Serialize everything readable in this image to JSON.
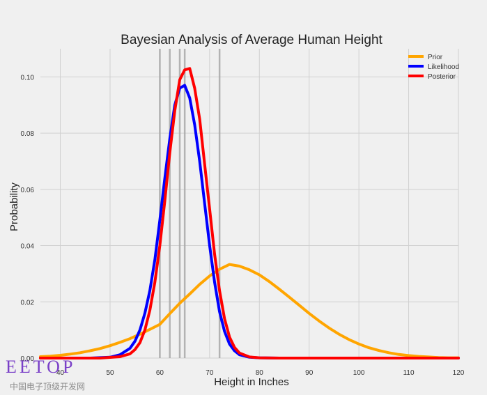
{
  "chart_data": {
    "type": "line",
    "title": "Bayesian Analysis of Average Human Height",
    "xlabel": "Height in Inches",
    "ylabel": "Probability",
    "xlim": [
      36,
      120
    ],
    "ylim": [
      0,
      0.11
    ],
    "xticks": [
      40,
      50,
      60,
      70,
      80,
      90,
      100,
      110,
      120
    ],
    "xtick_labels": [
      "40",
      "50",
      "60",
      "70",
      "80",
      "90",
      "100",
      "110",
      "120"
    ],
    "yticks": [
      0.0,
      0.02,
      0.04,
      0.06,
      0.08,
      0.1
    ],
    "ytick_labels": [
      "0.00",
      "0.02",
      "0.04",
      "0.06",
      "0.08",
      "0.10"
    ],
    "grid": true,
    "legend_position": "top-right",
    "vertical_lines_x": [
      60,
      62,
      64,
      65,
      72
    ],
    "series": [
      {
        "name": "Prior",
        "color": "#ffa500",
        "x": [
          36,
          38,
          40,
          42,
          44,
          46,
          48,
          50,
          52,
          54,
          56,
          58,
          60,
          62,
          64,
          66,
          68,
          70,
          72,
          74,
          76,
          78,
          80,
          82,
          84,
          86,
          88,
          90,
          92,
          94,
          96,
          98,
          100,
          102,
          104,
          106,
          108,
          110,
          112,
          114,
          116,
          118,
          120
        ],
        "y": [
          0.0005,
          0.0007,
          0.001,
          0.0014,
          0.0019,
          0.0026,
          0.0034,
          0.0044,
          0.0056,
          0.0069,
          0.0085,
          0.0102,
          0.012,
          0.0158,
          0.0195,
          0.0228,
          0.0262,
          0.0292,
          0.0316,
          0.0333,
          0.0327,
          0.0314,
          0.0296,
          0.0272,
          0.0245,
          0.0217,
          0.0188,
          0.0159,
          0.0132,
          0.0107,
          0.0085,
          0.0066,
          0.005,
          0.0037,
          0.0027,
          0.0019,
          0.0013,
          0.0009,
          0.0006,
          0.0004,
          0.0002,
          0.0001,
          0.0001
        ]
      },
      {
        "name": "Likelihood",
        "color": "#0000ff",
        "x": [
          36,
          46,
          50,
          52,
          54,
          55,
          56,
          57,
          58,
          59,
          60,
          61,
          62,
          63,
          64,
          65,
          66,
          67,
          68,
          69,
          70,
          71,
          72,
          73,
          74,
          75,
          76,
          78,
          80,
          84,
          120
        ],
        "y": [
          0,
          0,
          0.0003,
          0.0012,
          0.0035,
          0.006,
          0.01,
          0.016,
          0.024,
          0.035,
          0.049,
          0.064,
          0.078,
          0.09,
          0.096,
          0.097,
          0.0925,
          0.083,
          0.07,
          0.055,
          0.04,
          0.027,
          0.0165,
          0.0095,
          0.005,
          0.0026,
          0.0012,
          0.0003,
          0.0001,
          0,
          0
        ]
      },
      {
        "name": "Posterior",
        "color": "#ff0000",
        "x": [
          36,
          48,
          52,
          54,
          55,
          56,
          57,
          58,
          59,
          60,
          61,
          62,
          63,
          64,
          65,
          66,
          67,
          68,
          69,
          70,
          71,
          72,
          73,
          74,
          75,
          76,
          78,
          80,
          84,
          120
        ],
        "y": [
          0,
          0,
          0.0005,
          0.0015,
          0.003,
          0.0055,
          0.01,
          0.017,
          0.027,
          0.04,
          0.056,
          0.073,
          0.088,
          0.099,
          0.1025,
          0.103,
          0.096,
          0.085,
          0.069,
          0.053,
          0.037,
          0.024,
          0.014,
          0.0075,
          0.0038,
          0.0018,
          0.0004,
          0.0001,
          0,
          0
        ]
      }
    ]
  },
  "watermark": {
    "logo": "EETOP",
    "subtitle": "中国电子顶级开发网"
  }
}
